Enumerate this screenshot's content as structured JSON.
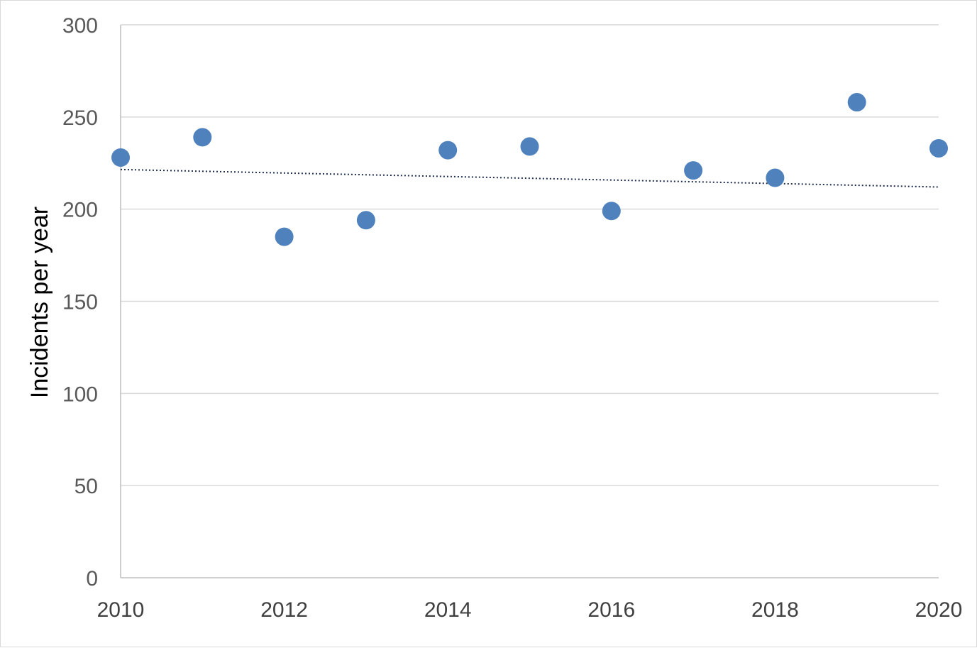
{
  "chart_data": {
    "type": "scatter",
    "title": "",
    "xlabel": "",
    "ylabel": "Incidents per year",
    "xlim": [
      2010,
      2020
    ],
    "ylim": [
      0,
      300
    ],
    "x_ticks": [
      2010,
      2012,
      2014,
      2016,
      2018,
      2020
    ],
    "y_ticks": [
      0,
      50,
      100,
      150,
      200,
      250,
      300
    ],
    "grid": "horizontal",
    "legend": "none",
    "series": [
      {
        "x": [
          2010,
          2011,
          2012,
          2013,
          2014,
          2015,
          2016,
          2017,
          2018,
          2019,
          2020
        ],
        "values": [
          228,
          239,
          185,
          194,
          232,
          234,
          199,
          221,
          217,
          258,
          233
        ],
        "color": "#4f81bd"
      }
    ],
    "trendline": {
      "type": "linear",
      "style": "dotted",
      "color": "#1f2d4d",
      "start": [
        2010,
        221.5
      ],
      "end": [
        2020,
        212
      ]
    }
  }
}
